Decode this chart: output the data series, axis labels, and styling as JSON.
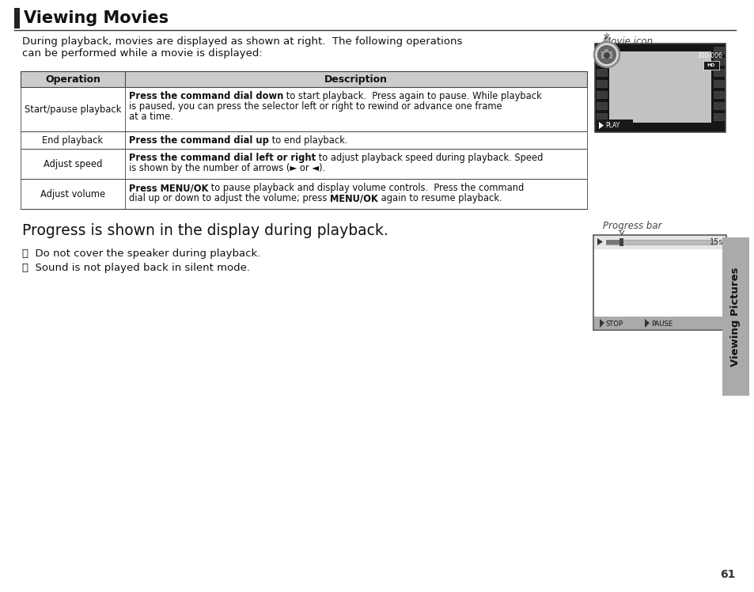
{
  "title": "Viewing Movies",
  "background_color": "#ffffff",
  "page_number": "61",
  "intro_line1": "During playback, movies are displayed as shown at right.  The following operations",
  "intro_line2": "can be performed while a movie is displayed:",
  "movie_icon_label": "Movie icon",
  "progress_bar_label": "Progress bar",
  "table_header": [
    "Operation",
    "Description"
  ],
  "progress_text": "Progress is shown in the display during playback.",
  "note1": "ⓘ  Do not cover the speaker during playback.",
  "note2": "ⓘ  Sound is not played back in silent mode.",
  "sidebar_text": "Viewing Pictures",
  "sidebar_color": "#aaaaaa"
}
